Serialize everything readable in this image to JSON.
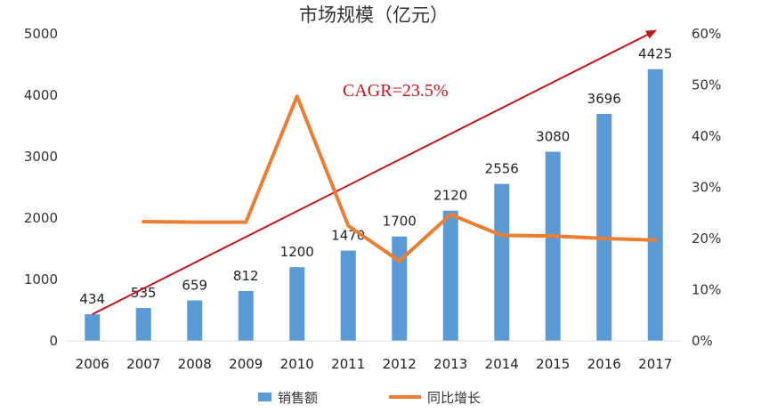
{
  "chart_data": {
    "type": "bar+line",
    "title": "市场规模（亿元）",
    "categories": [
      "2006",
      "2007",
      "2008",
      "2009",
      "2010",
      "2011",
      "2012",
      "2013",
      "2014",
      "2015",
      "2016",
      "2017"
    ],
    "series": [
      {
        "name": "销售额",
        "type": "bar",
        "axis": "left",
        "color": "#5b9bd5",
        "values": [
          434,
          535,
          659,
          812,
          1200,
          1470,
          1700,
          2120,
          2556,
          3080,
          3696,
          4425
        ],
        "labels": [
          "434",
          "535",
          "659",
          "812",
          "1200",
          "1470",
          "1700",
          "2120",
          "2556",
          "3080",
          "3696",
          "4425"
        ]
      },
      {
        "name": "同比增长",
        "type": "line",
        "axis": "right",
        "color": "#ed7d31",
        "values": [
          null,
          23.3,
          23.2,
          23.2,
          47.8,
          22.5,
          15.6,
          24.7,
          20.6,
          20.5,
          20.0,
          19.7
        ]
      }
    ],
    "left_axis": {
      "ylim": [
        0,
        5000
      ],
      "ticks": [
        "0",
        "1000",
        "2000",
        "3000",
        "4000",
        "5000"
      ]
    },
    "right_axis": {
      "ylim": [
        0,
        60
      ],
      "ticks": [
        "0%",
        "10%",
        "20%",
        "30%",
        "40%",
        "50%",
        "60%"
      ]
    },
    "annotation": {
      "text": "CAGR=23.5%",
      "color": "#c0171c",
      "arrow_from": {
        "x": "2006",
        "y": 434
      },
      "arrow_to": {
        "x": "2017",
        "y": 5050
      }
    },
    "legend": {
      "position": "bottom",
      "entries": [
        "销售额",
        "同比增长"
      ]
    },
    "grid": false
  }
}
